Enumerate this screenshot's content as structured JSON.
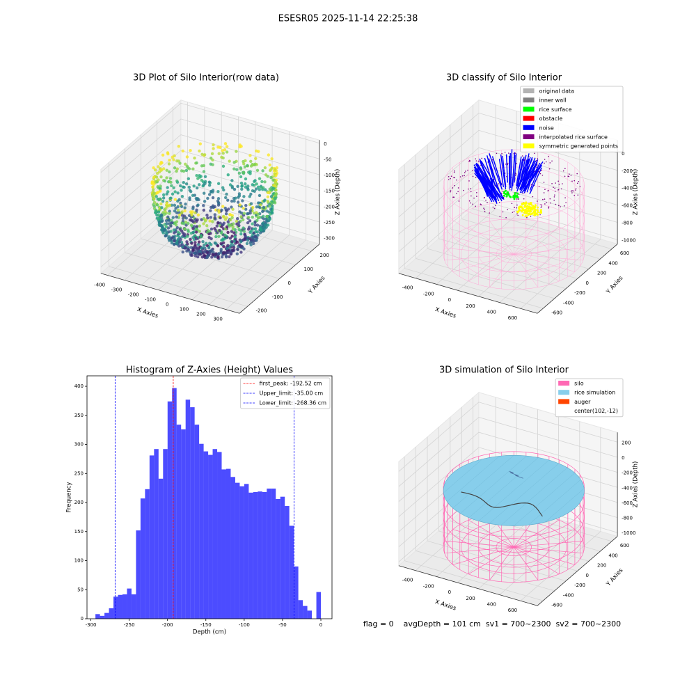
{
  "suptitle": "ESESR05 2025-11-14 22:25:38",
  "chart_data": [
    {
      "type": "scatter3d",
      "title": "3D Plot of Silo Interior(row data)",
      "xlabel": "X Axies",
      "ylabel": "Y Axies",
      "zlabel": "Z Axies (Depth)",
      "xlim": [
        -440,
        380
      ],
      "xticks": [
        -400,
        -300,
        -200,
        -100,
        0,
        100,
        200,
        300
      ],
      "ylim": [
        -250,
        250
      ],
      "yticks": [
        -200,
        -100,
        0,
        100,
        200
      ],
      "zlim": [
        -320,
        10
      ],
      "zticks": [
        0,
        -50,
        -100,
        -150,
        -200,
        -250,
        -300
      ]
    },
    {
      "type": "classify3d",
      "title": "3D classify of Silo Interior",
      "xlabel": "X Axies",
      "ylabel": "Y Axies",
      "zlabel": "Z Axies (Depth)",
      "xlim": [
        -560,
        760
      ],
      "xticks": [
        -400,
        -200,
        0,
        200,
        400,
        600
      ],
      "ylim": [
        -700,
        700
      ],
      "yticks": [
        -600,
        -400,
        -200,
        0,
        200,
        400,
        600
      ],
      "zlim": [
        -1050,
        150
      ],
      "zticks": [
        0,
        -200,
        -400,
        -600,
        -800,
        -1000
      ],
      "legend_loc": "upper right",
      "legend": [
        {
          "name": "original data",
          "color": "#b3b3b3"
        },
        {
          "name": "inner wall",
          "color": "#808080"
        },
        {
          "name": "rice surface",
          "color": "#00ff00"
        },
        {
          "name": "obstacle",
          "color": "#ff0000"
        },
        {
          "name": "noise",
          "color": "#0000ff"
        },
        {
          "name": "interpolated rice surface",
          "color": "#800080"
        },
        {
          "name": "symmetric generated points",
          "color": "#ffff00"
        }
      ]
    },
    {
      "type": "histogram",
      "title": "Histogram of Z-Axies (Height) Values",
      "xlabel": "Depth (cm)",
      "ylabel": "Frequency",
      "bins": [
        -294,
        -288.12,
        -282.24,
        -276.36,
        -270.48,
        -264.6,
        -258.72,
        -252.84,
        -246.96,
        -241.08,
        -235.2,
        -229.32,
        -223.44,
        -217.56,
        -211.68,
        -205.8,
        -199.92,
        -194.04,
        -188.16,
        -182.28,
        -176.4,
        -170.52,
        -164.64,
        -158.76,
        -152.88,
        -147,
        -141.12,
        -135.24,
        -129.36,
        -123.48,
        -117.6,
        -111.72,
        -105.84,
        -99.96,
        -94.08,
        -88.2,
        -82.32,
        -76.44,
        -70.56,
        -64.68,
        -58.8,
        -52.92,
        -47.04,
        -41.16,
        -35.28,
        -29.4,
        -23.52,
        -17.64,
        -11.76,
        -5.88,
        0
      ],
      "counts": [
        8,
        5,
        10,
        18,
        38,
        41,
        42,
        52,
        42,
        152,
        207,
        223,
        281,
        292,
        241,
        292,
        374,
        397,
        334,
        326,
        377,
        364,
        334,
        301,
        288,
        282,
        292,
        287,
        257,
        258,
        244,
        234,
        228,
        232,
        217,
        218,
        219,
        218,
        224,
        224,
        206,
        210,
        194,
        160,
        90,
        32,
        22,
        14,
        0,
        46
      ],
      "color": "#0000ff",
      "alpha": 0.7,
      "xlim": [
        -305,
        14.5
      ],
      "xticks": [
        -300,
        -250,
        -200,
        -150,
        -100,
        -50,
        0
      ],
      "ylim": [
        0,
        418
      ],
      "yticks": [
        0,
        50,
        100,
        150,
        200,
        250,
        300,
        350,
        400
      ],
      "legend_loc": "upper right",
      "vlines": [
        {
          "value": -192.52,
          "label": "first_peak: -192.52 cm",
          "color": "#ff0000"
        },
        {
          "value": -35,
          "label": "Upper_limit: -35.00 cm",
          "color": "#0000ff"
        },
        {
          "value": -268.36,
          "label": "Lower_limit: -268.36 cm",
          "color": "#0000ff"
        }
      ]
    },
    {
      "type": "surface3d",
      "title": "3D simulation of Silo Interior",
      "xlabel": "X Axies",
      "ylabel": "Y Axies",
      "zlabel": "Z Axies (Depth)",
      "xlim": [
        -560,
        760
      ],
      "xticks": [
        -400,
        -200,
        0,
        200,
        400,
        600
      ],
      "ylim": [
        -700,
        700
      ],
      "yticks": [
        -600,
        -400,
        -200,
        0,
        200,
        400,
        600
      ],
      "zlim": [
        -1050,
        330
      ],
      "zticks": [
        200,
        0,
        -200,
        -400,
        -600,
        -800,
        -1000
      ],
      "legend_loc": "upper right",
      "legend": [
        {
          "name": "silo",
          "color": "#ff69b4"
        },
        {
          "name": "rice simulation",
          "color": "#87ceeb"
        },
        {
          "name": "auger",
          "color": "#ff4500"
        },
        {
          "name": "center(102,-12)"
        }
      ]
    }
  ],
  "footer": "flag = 0    avgDepth = 101 cm  sv1 = 700~2300  sv2 = 700~2300"
}
